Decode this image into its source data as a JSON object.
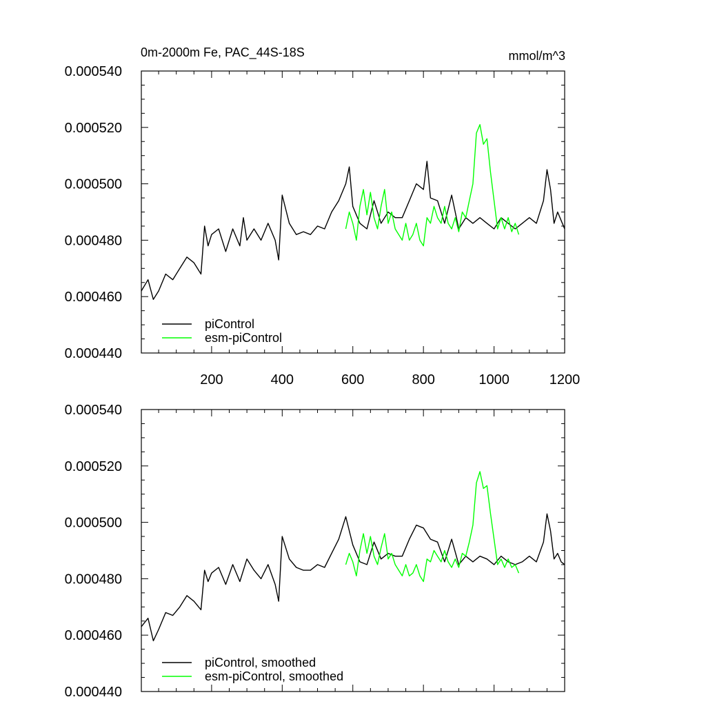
{
  "chart_data": [
    {
      "type": "line",
      "title": "0m-2000m Fe, PAC_44S-18S",
      "units": "mmol/m^3",
      "xlim": [
        1,
        1200
      ],
      "ylim": [
        0.00044,
        0.00054
      ],
      "y_ticks": [
        0.00044,
        0.00046,
        0.00048,
        0.0005,
        0.00052,
        0.00054
      ],
      "y_tick_labels": [
        "0.000440",
        "0.000460",
        "0.000480",
        "0.000500",
        "0.000520",
        "0.000540"
      ],
      "x_ticks": [
        200,
        400,
        600,
        800,
        1000,
        1200
      ],
      "x_tick_labels": [
        "200",
        "400",
        "600",
        "800",
        "1000",
        "1200"
      ],
      "legend_position": "bottom-left",
      "series": [
        {
          "name": "piControl",
          "color": "#000000",
          "x": [
            1,
            20,
            35,
            50,
            70,
            90,
            110,
            130,
            150,
            170,
            180,
            190,
            200,
            220,
            240,
            260,
            280,
            290,
            300,
            320,
            340,
            360,
            380,
            390,
            400,
            420,
            440,
            460,
            480,
            500,
            520,
            540,
            560,
            580,
            590,
            600,
            620,
            640,
            660,
            680,
            700,
            720,
            740,
            760,
            780,
            800,
            810,
            820,
            840,
            860,
            880,
            900,
            920,
            940,
            960,
            980,
            1000,
            1020,
            1040,
            1060,
            1080,
            1100,
            1120,
            1140,
            1150,
            1160,
            1170,
            1180,
            1190,
            1200
          ],
          "values": [
            0.000462,
            0.000466,
            0.000459,
            0.000462,
            0.000468,
            0.000466,
            0.00047,
            0.000474,
            0.000472,
            0.000468,
            0.000485,
            0.000478,
            0.000482,
            0.000484,
            0.000476,
            0.000484,
            0.000478,
            0.000488,
            0.00048,
            0.000484,
            0.00048,
            0.000486,
            0.00048,
            0.000473,
            0.000496,
            0.000486,
            0.000482,
            0.000483,
            0.000482,
            0.000485,
            0.000484,
            0.00049,
            0.000494,
            0.0005,
            0.000506,
            0.000492,
            0.000486,
            0.000484,
            0.000494,
            0.000486,
            0.00049,
            0.000488,
            0.000488,
            0.000494,
            0.0005,
            0.000498,
            0.000508,
            0.000495,
            0.000494,
            0.000486,
            0.000496,
            0.000484,
            0.000488,
            0.000486,
            0.000488,
            0.000486,
            0.000484,
            0.000488,
            0.000486,
            0.000484,
            0.000486,
            0.000488,
            0.000486,
            0.000494,
            0.000505,
            0.000498,
            0.000486,
            0.00049,
            0.000487,
            0.000484
          ]
        },
        {
          "name": "esm-piControl",
          "color": "#00ff00",
          "x": [
            580,
            590,
            600,
            610,
            620,
            630,
            640,
            650,
            660,
            670,
            680,
            690,
            700,
            710,
            720,
            730,
            740,
            750,
            760,
            770,
            780,
            790,
            800,
            810,
            820,
            830,
            840,
            850,
            860,
            870,
            880,
            890,
            900,
            910,
            920,
            930,
            940,
            950,
            960,
            970,
            980,
            990,
            1000,
            1010,
            1020,
            1030,
            1040,
            1050,
            1060,
            1070
          ],
          "values": [
            0.000484,
            0.00049,
            0.000486,
            0.00048,
            0.000492,
            0.000498,
            0.000489,
            0.000497,
            0.000488,
            0.000484,
            0.000492,
            0.000498,
            0.000486,
            0.00049,
            0.000484,
            0.000482,
            0.00048,
            0.000486,
            0.00048,
            0.000482,
            0.000486,
            0.00048,
            0.000478,
            0.000488,
            0.000486,
            0.000492,
            0.000488,
            0.000486,
            0.000492,
            0.000486,
            0.000484,
            0.000488,
            0.000483,
            0.00049,
            0.000488,
            0.000494,
            0.0005,
            0.000518,
            0.000521,
            0.000514,
            0.000516,
            0.000504,
            0.000494,
            0.000484,
            0.000488,
            0.000484,
            0.000488,
            0.000483,
            0.000486,
            0.000482
          ]
        }
      ]
    },
    {
      "type": "line",
      "xlim": [
        1,
        1200
      ],
      "ylim": [
        0.00044,
        0.00054
      ],
      "y_ticks": [
        0.00044,
        0.00046,
        0.00048,
        0.0005,
        0.00052,
        0.00054
      ],
      "y_tick_labels": [
        "0.000440",
        "0.000460",
        "0.000480",
        "0.000500",
        "0.000520",
        "0.000540"
      ],
      "x_ticks": [
        200,
        400,
        600,
        800,
        1000,
        1200
      ],
      "legend_position": "bottom-left",
      "series": [
        {
          "name": "piControl, smoothed",
          "color": "#000000",
          "x": [
            1,
            20,
            35,
            50,
            70,
            90,
            110,
            130,
            150,
            170,
            180,
            190,
            200,
            220,
            240,
            260,
            280,
            300,
            320,
            340,
            360,
            380,
            390,
            400,
            420,
            440,
            460,
            480,
            500,
            520,
            540,
            560,
            580,
            600,
            620,
            640,
            660,
            680,
            700,
            720,
            740,
            760,
            780,
            800,
            820,
            840,
            860,
            880,
            900,
            920,
            940,
            960,
            980,
            1000,
            1020,
            1040,
            1060,
            1080,
            1100,
            1120,
            1140,
            1150,
            1160,
            1170,
            1180,
            1190,
            1200
          ],
          "values": [
            0.000463,
            0.000466,
            0.000458,
            0.000462,
            0.000468,
            0.000467,
            0.00047,
            0.000474,
            0.000472,
            0.000469,
            0.000483,
            0.000479,
            0.000482,
            0.000484,
            0.000478,
            0.000485,
            0.000479,
            0.000487,
            0.000483,
            0.00048,
            0.000485,
            0.000478,
            0.000472,
            0.000495,
            0.000487,
            0.000484,
            0.000483,
            0.000483,
            0.000485,
            0.000484,
            0.000489,
            0.000494,
            0.000502,
            0.000492,
            0.000486,
            0.000485,
            0.000493,
            0.000487,
            0.000489,
            0.000488,
            0.000488,
            0.000494,
            0.000499,
            0.000498,
            0.000494,
            0.000493,
            0.000486,
            0.000494,
            0.000485,
            0.000488,
            0.000486,
            0.000488,
            0.000487,
            0.000485,
            0.000488,
            0.000486,
            0.000485,
            0.000486,
            0.000488,
            0.000486,
            0.000493,
            0.000503,
            0.000497,
            0.000487,
            0.000489,
            0.000486,
            0.000485
          ]
        },
        {
          "name": "esm-piControl, smoothed",
          "color": "#00ff00",
          "x": [
            580,
            590,
            600,
            610,
            620,
            630,
            640,
            650,
            660,
            670,
            680,
            690,
            700,
            710,
            720,
            730,
            740,
            750,
            760,
            770,
            780,
            790,
            800,
            810,
            820,
            830,
            840,
            850,
            860,
            870,
            880,
            890,
            900,
            910,
            920,
            930,
            940,
            950,
            960,
            970,
            980,
            990,
            1000,
            1010,
            1020,
            1030,
            1040,
            1050,
            1060,
            1070
          ],
          "values": [
            0.000485,
            0.000489,
            0.000486,
            0.000481,
            0.00049,
            0.000496,
            0.000489,
            0.000495,
            0.000488,
            0.000485,
            0.000491,
            0.000496,
            0.000487,
            0.000489,
            0.000485,
            0.000483,
            0.000481,
            0.000485,
            0.000481,
            0.000482,
            0.000485,
            0.000481,
            0.000479,
            0.000487,
            0.000486,
            0.00049,
            0.000488,
            0.000486,
            0.00049,
            0.000486,
            0.000484,
            0.000487,
            0.000484,
            0.000489,
            0.000488,
            0.000493,
            0.000499,
            0.000514,
            0.000518,
            0.000512,
            0.000513,
            0.000503,
            0.000494,
            0.000485,
            0.000487,
            0.000484,
            0.000487,
            0.000484,
            0.000485,
            0.000482
          ]
        }
      ]
    }
  ]
}
